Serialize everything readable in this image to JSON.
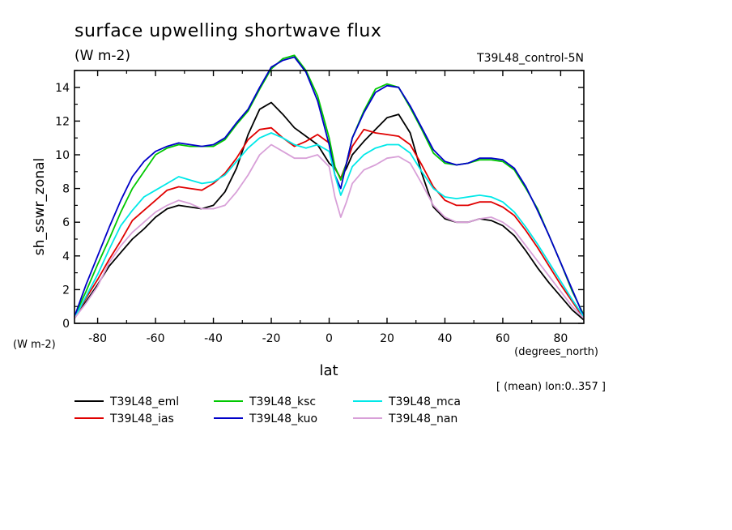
{
  "chart_data": {
    "type": "line",
    "title": "surface upwelling shortwave flux",
    "subtitle": "(W m-2)",
    "run_label": "T39L48_control-5N",
    "xlabel": "lat",
    "x_units": "(degrees_north)",
    "ylabel": "sh_sswr_zonal",
    "y_units": "(W m-2)",
    "footnote": "[ (mean) lon:0..357 ]",
    "xlim": [
      -88,
      88
    ],
    "ylim": [
      0,
      15
    ],
    "x_ticks": [
      -80,
      -60,
      -40,
      -20,
      0,
      20,
      40,
      60,
      80
    ],
    "y_ticks": [
      0,
      2,
      4,
      6,
      8,
      10,
      12,
      14
    ],
    "grid": false,
    "legend_position": "bottom",
    "x": [
      -88,
      -84,
      -80,
      -76,
      -72,
      -68,
      -64,
      -60,
      -56,
      -52,
      -48,
      -44,
      -40,
      -36,
      -32,
      -28,
      -24,
      -20,
      -16,
      -12,
      -8,
      -4,
      0,
      2,
      4,
      6,
      8,
      12,
      16,
      20,
      24,
      28,
      32,
      36,
      40,
      44,
      48,
      52,
      56,
      60,
      64,
      68,
      72,
      76,
      80,
      84,
      88
    ],
    "series": [
      {
        "name": "T39L48_eml",
        "color": "#000000",
        "values": [
          0.3,
          1.3,
          2.3,
          3.4,
          4.2,
          5.0,
          5.6,
          6.3,
          6.8,
          7.0,
          6.9,
          6.8,
          7.0,
          7.8,
          9.2,
          11.2,
          12.7,
          13.1,
          12.4,
          11.6,
          11.1,
          10.6,
          9.5,
          9.2,
          8.6,
          9.2,
          10.0,
          10.8,
          11.5,
          12.2,
          12.4,
          11.3,
          8.9,
          6.9,
          6.2,
          6.0,
          6.0,
          6.2,
          6.1,
          5.8,
          5.2,
          4.3,
          3.3,
          2.4,
          1.6,
          0.8,
          0.2
        ]
      },
      {
        "name": "T39L48_ias",
        "color": "#e00000",
        "values": [
          0.3,
          1.5,
          2.6,
          3.8,
          4.9,
          6.1,
          6.7,
          7.3,
          7.9,
          8.1,
          8.0,
          7.9,
          8.3,
          8.9,
          9.8,
          10.9,
          11.5,
          11.6,
          11.0,
          10.5,
          10.8,
          11.2,
          10.7,
          9.2,
          8.6,
          9.5,
          10.5,
          11.5,
          11.3,
          11.2,
          11.1,
          10.6,
          9.4,
          8.1,
          7.3,
          7.0,
          7.0,
          7.2,
          7.2,
          6.9,
          6.4,
          5.5,
          4.5,
          3.4,
          2.3,
          1.3,
          0.3
        ]
      },
      {
        "name": "T39L48_ksc",
        "color": "#00c800",
        "values": [
          0.4,
          1.9,
          3.5,
          5.0,
          6.6,
          8.0,
          9.0,
          10.0,
          10.4,
          10.6,
          10.5,
          10.5,
          10.5,
          10.9,
          11.8,
          12.6,
          13.9,
          15.1,
          15.7,
          15.9,
          15.0,
          13.5,
          11.0,
          9.3,
          8.5,
          9.5,
          11.0,
          12.6,
          13.9,
          14.2,
          14.0,
          12.8,
          11.5,
          10.1,
          9.5,
          9.4,
          9.5,
          9.7,
          9.7,
          9.6,
          9.1,
          8.0,
          6.8,
          5.2,
          3.6,
          1.9,
          0.5
        ]
      },
      {
        "name": "T39L48_kuo",
        "color": "#0000c8",
        "values": [
          0.4,
          2.3,
          4.0,
          5.7,
          7.3,
          8.7,
          9.6,
          10.2,
          10.5,
          10.7,
          10.6,
          10.5,
          10.6,
          11.0,
          11.9,
          12.7,
          14.0,
          15.2,
          15.6,
          15.8,
          14.9,
          13.2,
          10.6,
          8.8,
          8.0,
          9.5,
          11.0,
          12.5,
          13.7,
          14.1,
          14.0,
          12.9,
          11.6,
          10.3,
          9.6,
          9.4,
          9.5,
          9.8,
          9.8,
          9.7,
          9.2,
          8.1,
          6.7,
          5.2,
          3.6,
          2.0,
          0.4
        ]
      },
      {
        "name": "T39L48_mca",
        "color": "#00e8e8",
        "values": [
          0.3,
          1.6,
          2.9,
          4.4,
          5.8,
          6.7,
          7.5,
          7.9,
          8.3,
          8.7,
          8.5,
          8.3,
          8.4,
          8.8,
          9.6,
          10.4,
          11.0,
          11.3,
          11.0,
          10.6,
          10.4,
          10.6,
          10.2,
          8.8,
          7.6,
          8.4,
          9.3,
          10.0,
          10.4,
          10.6,
          10.6,
          10.1,
          9.0,
          8.0,
          7.5,
          7.4,
          7.5,
          7.6,
          7.5,
          7.2,
          6.6,
          5.7,
          4.7,
          3.6,
          2.5,
          1.4,
          0.4
        ]
      },
      {
        "name": "T39L48_nan",
        "color": "#d8a0d8",
        "values": [
          0.3,
          1.2,
          2.2,
          3.6,
          4.6,
          5.4,
          6.0,
          6.6,
          7.0,
          7.3,
          7.1,
          6.8,
          6.8,
          7.0,
          7.8,
          8.8,
          10.0,
          10.6,
          10.2,
          9.8,
          9.8,
          10.0,
          9.3,
          7.5,
          6.3,
          7.2,
          8.3,
          9.1,
          9.4,
          9.8,
          9.9,
          9.5,
          8.3,
          7.0,
          6.3,
          6.0,
          6.0,
          6.2,
          6.3,
          6.0,
          5.5,
          4.6,
          3.7,
          2.8,
          1.9,
          1.0,
          0.3
        ]
      }
    ]
  }
}
